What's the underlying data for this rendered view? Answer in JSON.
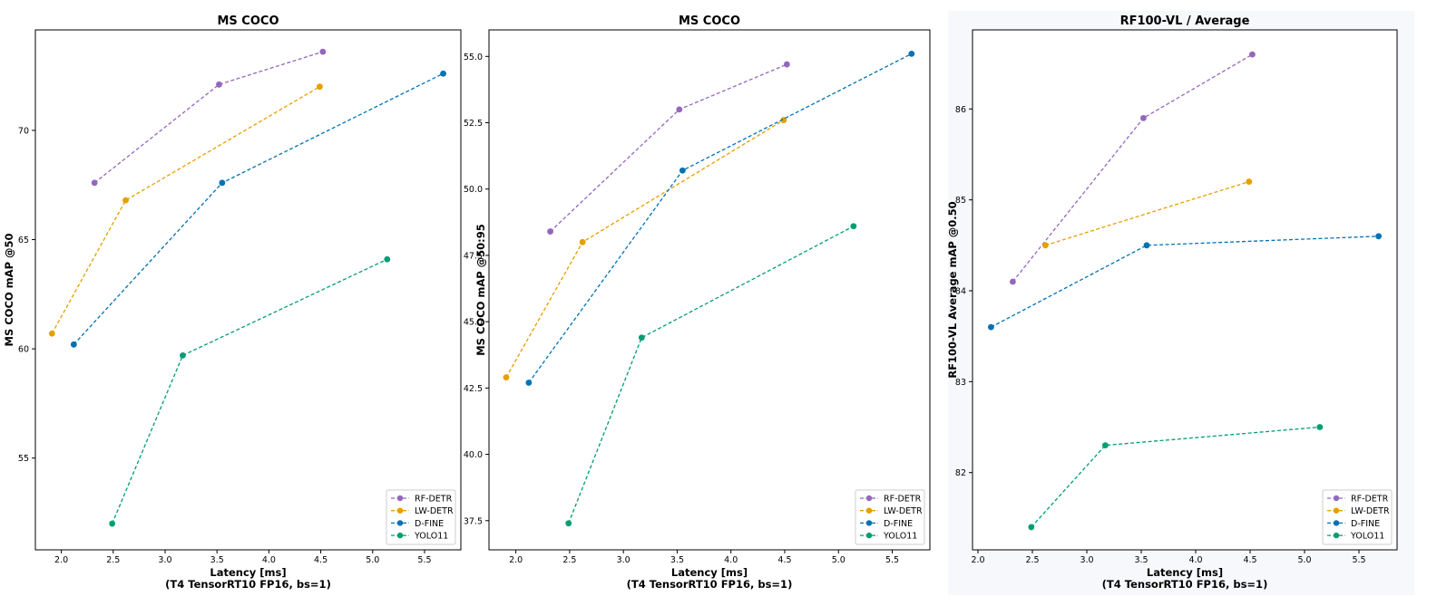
{
  "colors": {
    "RF-DETR": "#9467bd",
    "LW-DETR": "#e69f00",
    "D-FINE": "#0072b2",
    "YOLO11": "#009e73"
  },
  "chart_data": [
    {
      "type": "line",
      "title": "MS COCO",
      "xlabel": "Latency [ms]",
      "xlabel2": "(T4 TensorRT10 FP16, bs=1)",
      "ylabel": "MS COCO mAP @50",
      "xlim": [
        1.75,
        5.85
      ],
      "ylim": [
        50.8,
        74.6
      ],
      "xticks": [
        2.0,
        2.5,
        3.0,
        3.5,
        4.0,
        4.5,
        5.0,
        5.5
      ],
      "xtick_labels": [
        "2.0",
        "2.5",
        "3.0",
        "3.5",
        "4.0",
        "4.5",
        "5.0",
        "5.5"
      ],
      "yticks": [
        55,
        60,
        65,
        70
      ],
      "ytick_labels": [
        "55",
        "60",
        "65",
        "70"
      ],
      "legend_position": "lower-right",
      "grid": false,
      "series": [
        {
          "name": "RF-DETR",
          "x": [
            2.32,
            3.52,
            4.52
          ],
          "y": [
            67.6,
            72.1,
            73.6
          ]
        },
        {
          "name": "LW-DETR",
          "x": [
            1.91,
            2.62,
            4.49
          ],
          "y": [
            60.7,
            66.8,
            72.0
          ]
        },
        {
          "name": "D-FINE",
          "x": [
            2.12,
            3.55,
            5.68
          ],
          "y": [
            60.2,
            67.6,
            72.6
          ]
        },
        {
          "name": "YOLO11",
          "x": [
            2.49,
            3.17,
            5.14
          ],
          "y": [
            52.0,
            59.7,
            64.1
          ]
        }
      ]
    },
    {
      "type": "line",
      "title": "MS COCO",
      "xlabel": "Latency [ms]",
      "xlabel2": "(T4 TensorRT10 FP16, bs=1)",
      "ylabel": "MS COCO mAP @50:95",
      "xlim": [
        1.75,
        5.85
      ],
      "ylim": [
        36.4,
        56.0
      ],
      "xticks": [
        2.0,
        2.5,
        3.0,
        3.5,
        4.0,
        4.5,
        5.0,
        5.5
      ],
      "xtick_labels": [
        "2.0",
        "2.5",
        "3.0",
        "3.5",
        "4.0",
        "4.5",
        "5.0",
        "5.5"
      ],
      "yticks": [
        37.5,
        40.0,
        42.5,
        45.0,
        47.5,
        50.0,
        52.5,
        55.0
      ],
      "ytick_labels": [
        "37.5",
        "40.0",
        "42.5",
        "45.0",
        "47.5",
        "50.0",
        "52.5",
        "55.0"
      ],
      "legend_position": "lower-right",
      "grid": false,
      "series": [
        {
          "name": "RF-DETR",
          "x": [
            2.32,
            3.52,
            4.52
          ],
          "y": [
            48.4,
            53.0,
            54.7
          ]
        },
        {
          "name": "LW-DETR",
          "x": [
            1.91,
            2.62,
            4.49
          ],
          "y": [
            42.9,
            48.0,
            52.6
          ]
        },
        {
          "name": "D-FINE",
          "x": [
            2.12,
            3.55,
            5.68
          ],
          "y": [
            42.7,
            50.7,
            55.1
          ]
        },
        {
          "name": "YOLO11",
          "x": [
            2.49,
            3.17,
            5.14
          ],
          "y": [
            37.4,
            44.4,
            48.6
          ]
        }
      ]
    },
    {
      "type": "line",
      "title": "RF100-VL / Average",
      "xlabel": "Latency [ms]",
      "xlabel2": "(T4 TensorRT10 FP16, bs=1)",
      "ylabel": "RF100-VL Average mAP @0.50",
      "xlim": [
        1.95,
        5.85
      ],
      "ylim": [
        81.15,
        86.87
      ],
      "xticks": [
        2.0,
        2.5,
        3.0,
        3.5,
        4.0,
        4.5,
        5.0,
        5.5
      ],
      "xtick_labels": [
        "2.0",
        "2.5",
        "3.0",
        "3.5",
        "4.0",
        "4.5",
        "5.0",
        "5.5"
      ],
      "yticks": [
        82,
        83,
        84,
        85,
        86
      ],
      "ytick_labels": [
        "82",
        "83",
        "84",
        "85",
        "86"
      ],
      "legend_position": "lower-right",
      "grid": false,
      "series": [
        {
          "name": "RF-DETR",
          "x": [
            2.32,
            3.52,
            4.52
          ],
          "y": [
            84.1,
            85.9,
            86.6
          ]
        },
        {
          "name": "LW-DETR",
          "x": [
            2.62,
            4.49
          ],
          "y": [
            84.5,
            85.2
          ]
        },
        {
          "name": "D-FINE",
          "x": [
            2.12,
            3.55,
            5.68
          ],
          "y": [
            83.6,
            84.5,
            84.6
          ]
        },
        {
          "name": "YOLO11",
          "x": [
            2.49,
            3.17,
            5.14
          ],
          "y": [
            81.4,
            82.3,
            82.5
          ]
        }
      ]
    }
  ]
}
